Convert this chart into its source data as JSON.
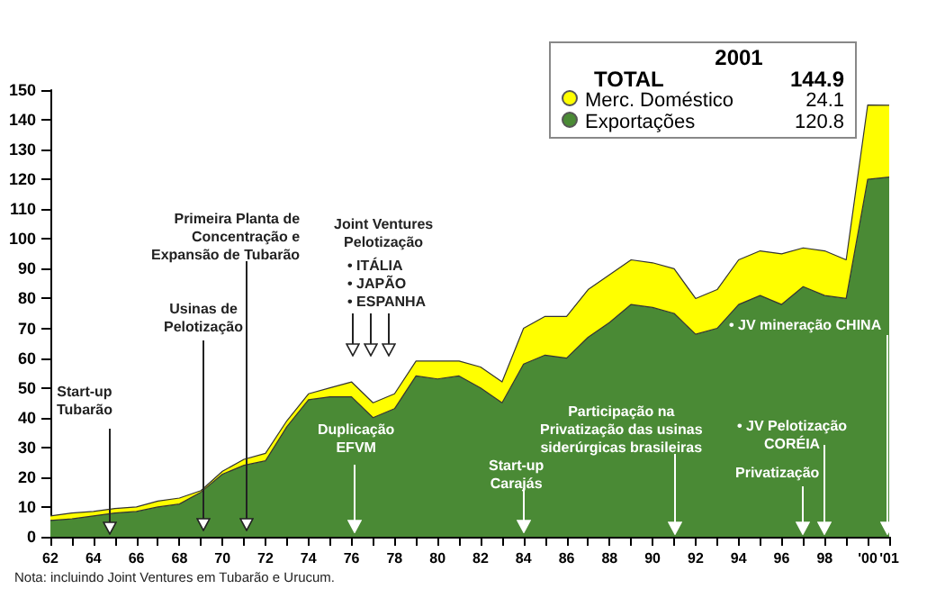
{
  "chart_data": {
    "type": "area",
    "stacked": true,
    "legend": "top right",
    "legend_title": "2001",
    "marker": "none",
    "grid": false,
    "categories": [
      "62",
      null,
      "64",
      null,
      "66",
      null,
      "68",
      null,
      "70",
      null,
      "72",
      null,
      "74",
      null,
      "76",
      null,
      "78",
      null,
      "80",
      null,
      "82",
      null,
      "84",
      null,
      "86",
      null,
      "88",
      null,
      "90",
      null,
      "92",
      null,
      "94",
      null,
      "96",
      null,
      "98",
      null,
      "'00",
      "'01"
    ],
    "ylim": [
      0,
      150
    ],
    "yticks": [
      0,
      10,
      20,
      30,
      40,
      50,
      60,
      70,
      80,
      90,
      100,
      110,
      120,
      130,
      140,
      150
    ],
    "series": [
      {
        "name": "Exportações",
        "color": "#4a8a35",
        "values": [
          5.5,
          6,
          7,
          8,
          8.5,
          10,
          11,
          15,
          21,
          24,
          25.5,
          37,
          46,
          47,
          47,
          40,
          43,
          54,
          53,
          54,
          50,
          45,
          58,
          61,
          60,
          67,
          72,
          78,
          77,
          75,
          68,
          70,
          78,
          81,
          78,
          84,
          81,
          80,
          120,
          120.8
        ]
      },
      {
        "name": "Merc. Doméstico",
        "color": "#ffff00",
        "values": [
          1.5,
          2,
          1.5,
          1.5,
          1.5,
          2,
          2,
          0.5,
          1,
          2,
          2.5,
          2,
          2,
          3,
          5,
          5,
          5,
          5,
          6,
          5,
          7,
          7,
          12,
          13,
          14,
          16,
          16,
          15,
          15,
          15,
          12,
          13,
          15,
          15,
          17,
          13,
          15,
          13,
          25,
          24.1
        ]
      }
    ],
    "annotations": [
      "Start-up\nTubarão",
      "Usinas de\nPelotização",
      "Primeira Planta de\nConcentração e\nExpansão de Tubarão",
      "Joint Ventures\nPelotização",
      "• ITÁLIA\n• JAPÃO\n• ESPANHA",
      "Duplicação\nEFVM",
      "Start-up\nCarajás",
      "Participação na\nPrivatização das usinas\nsiderúrgicas brasileiras",
      "• JV mineração CHINA",
      "• JV Pelotização\nCORÉIA",
      "Privatização",
      "Nota: incluindo Joint Ventures em Tubarão e Urucum.",
      "TOTAL",
      "144.9",
      "24.1",
      "120.8"
    ]
  }
}
